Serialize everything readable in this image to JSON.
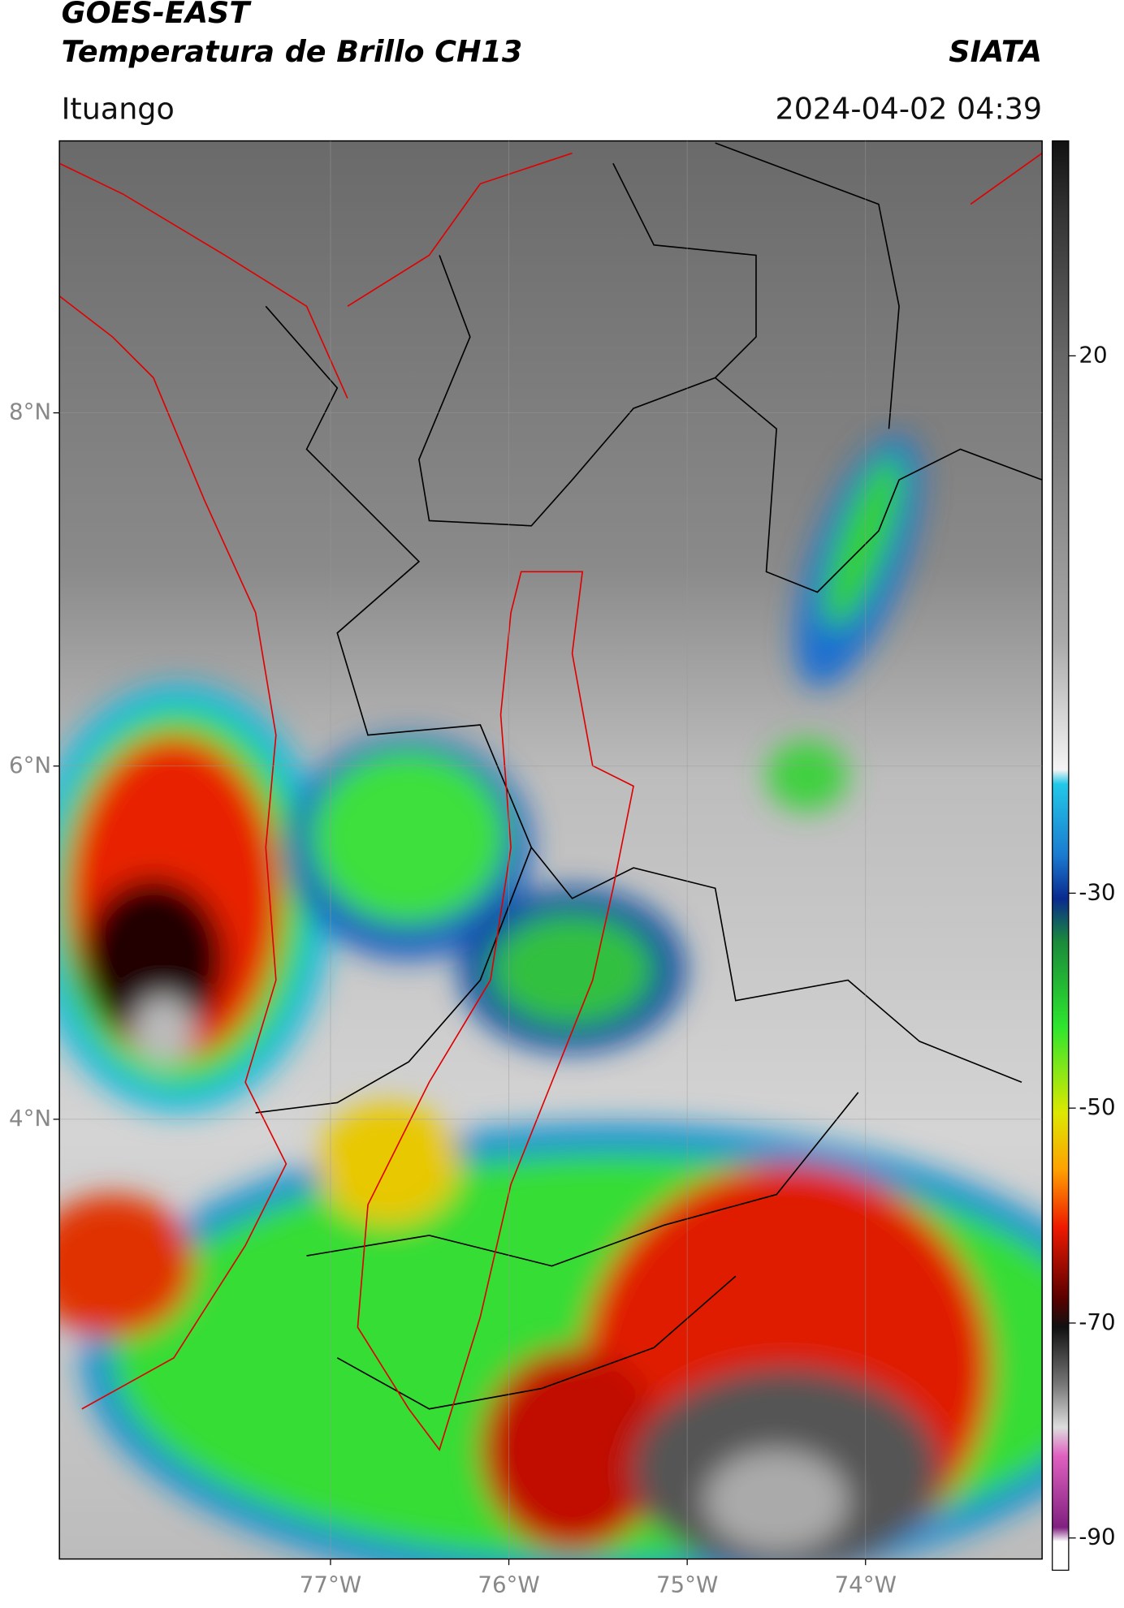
{
  "header": {
    "title": "GOES-EAST",
    "subtitle": "Temperatura de Brillo CH13",
    "source": "SIATA",
    "location": "Ituango",
    "datetime": "2024-04-02 04:39"
  },
  "map": {
    "xlim": [
      -78.52,
      -73.01
    ],
    "ylim": [
      1.51,
      9.54
    ],
    "xticks": [
      {
        "value": -77,
        "label": "77°W"
      },
      {
        "value": -76,
        "label": "76°W"
      },
      {
        "value": -75,
        "label": "75°W"
      },
      {
        "value": -74,
        "label": "74°W"
      }
    ],
    "yticks": [
      {
        "value": 8,
        "label": "8°N"
      },
      {
        "value": 6,
        "label": "6°N"
      },
      {
        "value": 4,
        "label": "4°N"
      }
    ],
    "grid": true
  },
  "colorbar": {
    "lim": [
      -93,
      40
    ],
    "ticks": [
      20,
      -30,
      -50,
      -70,
      -90
    ]
  }
}
